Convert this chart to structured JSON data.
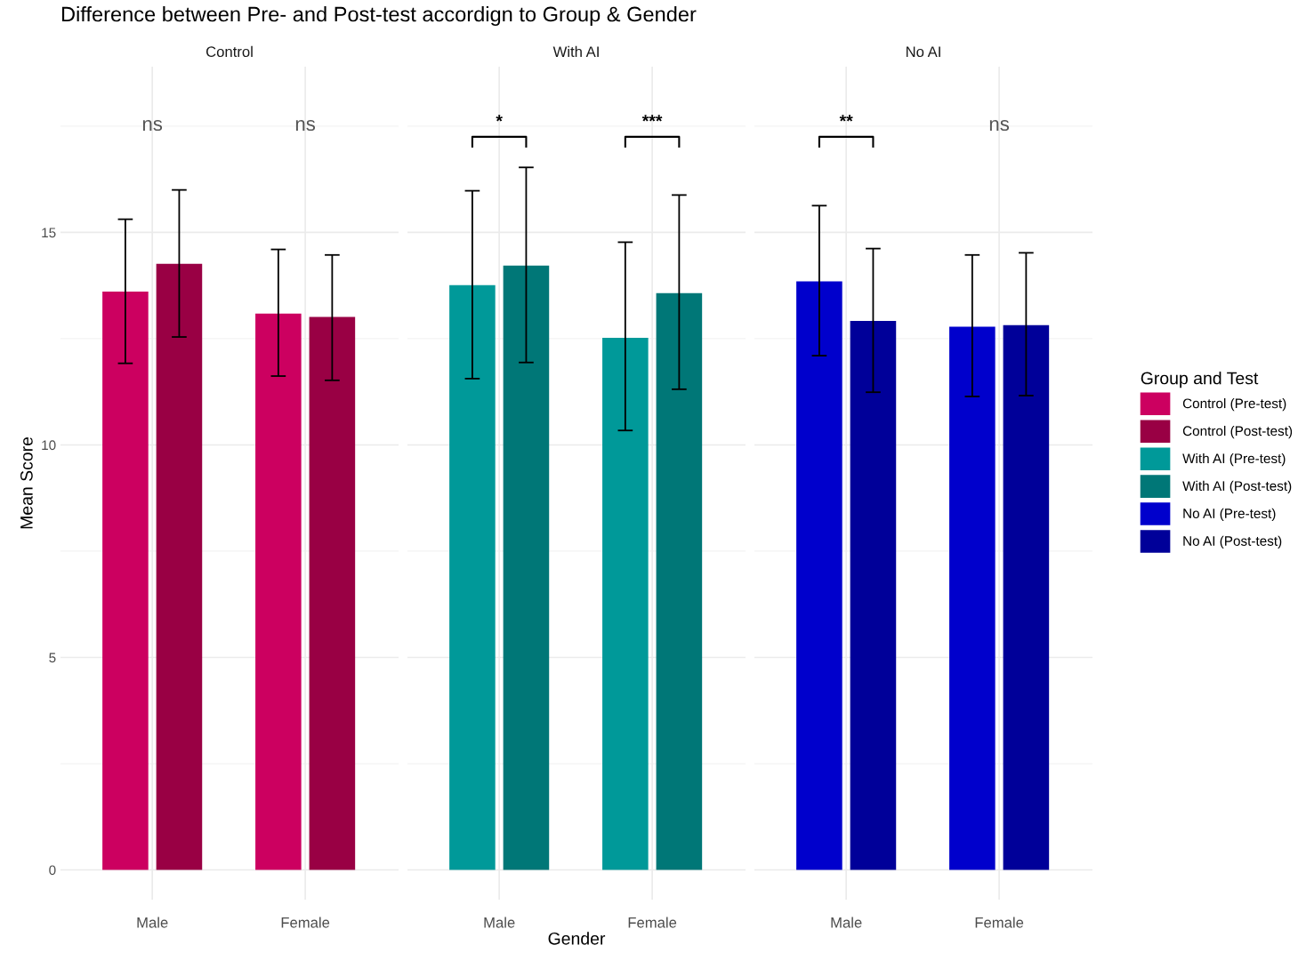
{
  "chart_data": [
    {
      "type": "bar",
      "title": "Difference between Pre- and Post-test accordign to Group & Gender",
      "subtitle": "Control",
      "ylabel": "Mean Score",
      "categories": [
        "Male",
        "Female"
      ],
      "ylim": [
        -0.7,
        18.9
      ],
      "yticks": [
        0,
        5,
        10,
        15
      ],
      "grid": true,
      "legend": "right",
      "legend_title": "Group and Test",
      "annotations": [
        "ns",
        "ns"
      ],
      "series": [
        {
          "name": "Control (Pre-test)",
          "color": "#cc0060",
          "values": [
            13.61,
            13.09
          ],
          "errors": [
            [
              11.92,
              15.31
            ],
            [
              11.62,
              14.6
            ]
          ]
        },
        {
          "name": "Control (Post-test)",
          "color": "#990044",
          "values": [
            14.26,
            13.01
          ],
          "errors": [
            [
              12.54,
              16.0
            ],
            [
              11.52,
              14.47
            ]
          ]
        }
      ]
    },
    {
      "type": "bar",
      "subtitle": "With AI",
      "xlabel": "Gender",
      "categories": [
        "Male",
        "Female"
      ],
      "ylim": [
        -0.7,
        18.9
      ],
      "yticks": [
        0,
        5,
        10,
        15
      ],
      "grid": true,
      "legend": "right",
      "tick_labels": "x",
      "annotations": [
        "*",
        "***"
      ],
      "series": [
        {
          "name": "With AI (Pre-test)",
          "color": "#009999",
          "values": [
            13.76,
            12.52
          ],
          "errors": [
            [
              11.56,
              15.98
            ],
            [
              10.34,
              14.77
            ]
          ]
        },
        {
          "name": "With AI (Post-test)",
          "color": "#007777",
          "values": [
            14.22,
            13.57
          ],
          "errors": [
            [
              11.94,
              16.53
            ],
            [
              11.31,
              15.88
            ]
          ]
        }
      ]
    },
    {
      "type": "bar",
      "subtitle": "No AI",
      "categories": [
        "Male",
        "Female"
      ],
      "ylim": [
        -0.7,
        18.9
      ],
      "yticks": [
        0,
        5,
        10,
        15
      ],
      "grid": true,
      "legend": "right",
      "tick_labels": "x",
      "annotations": [
        "**",
        "ns"
      ],
      "series": [
        {
          "name": "No AI (Pre-test)",
          "color": "#0000cc",
          "values": [
            13.85,
            12.78
          ],
          "errors": [
            [
              12.1,
              15.63
            ],
            [
              11.14,
              14.47
            ]
          ]
        },
        {
          "name": "No AI (Post-test)",
          "color": "#000099",
          "values": [
            12.92,
            12.82
          ],
          "errors": [
            [
              11.24,
              14.62
            ],
            [
              11.16,
              14.52
            ]
          ]
        }
      ]
    }
  ]
}
